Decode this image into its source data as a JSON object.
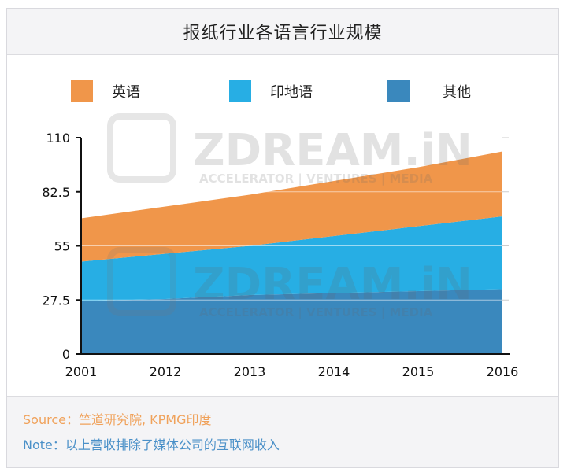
{
  "title": "报纸行业各语言行业规模",
  "source_text": "Source：竺道研究院, KPMG印度",
  "note_text": "Note：以上营收排除了媒体公司的互联网收入",
  "watermark": {
    "brand": "ZDREAM.iN",
    "tagline": "ACCELERATOR | VENTURES | MEDIA"
  },
  "chart_data": {
    "type": "area",
    "stacked": true,
    "title": "报纸行业各语言行业规模",
    "xlabel": "",
    "ylabel": "",
    "categories": [
      "2001",
      "2012",
      "2013",
      "2014",
      "2015",
      "2016"
    ],
    "ylim": [
      0,
      110
    ],
    "yticks": [
      0,
      27.5,
      55,
      82.5,
      110
    ],
    "ytick_labels": [
      "0",
      "27.5",
      "55",
      "82.5",
      "110"
    ],
    "grid": true,
    "legend_position": "top",
    "series": [
      {
        "name": "其他",
        "color": "#3a88bd",
        "values": [
          27,
          28,
          30,
          31,
          32,
          33
        ]
      },
      {
        "name": "印地语",
        "color": "#27aee4",
        "values": [
          20,
          23,
          25,
          29,
          33,
          37
        ]
      },
      {
        "name": "英语",
        "color": "#f0964a",
        "values": [
          22,
          24,
          26,
          28,
          30,
          33
        ]
      }
    ],
    "legend_order": [
      "英语",
      "印地语",
      "其他"
    ]
  }
}
